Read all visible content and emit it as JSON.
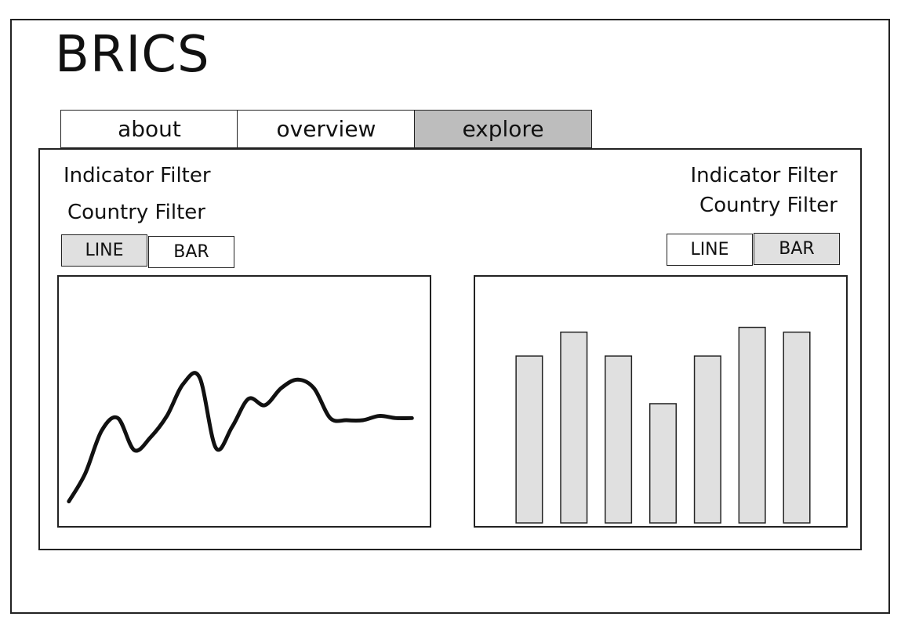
{
  "app": {
    "title": "BRICS"
  },
  "tabs": [
    {
      "label": "about",
      "active": false
    },
    {
      "label": "overview",
      "active": false
    },
    {
      "label": "explore",
      "active": true
    }
  ],
  "left_panel": {
    "indicator_filter": "Indicator Filter",
    "country_filter": "Country Filter",
    "buttons": {
      "line": {
        "label": "LINE",
        "active": true
      },
      "bar": {
        "label": "BAR",
        "active": false
      }
    }
  },
  "right_panel": {
    "indicator_filter": "Indicator Filter",
    "country_filter": "Country Filter",
    "buttons": {
      "line": {
        "label": "LINE",
        "active": false
      },
      "bar": {
        "label": "BAR",
        "active": true
      }
    }
  },
  "colors": {
    "active_tab": "#bdbdbd",
    "active_button": "#e0e0e0",
    "bar_fill": "#e0e0e0",
    "stroke": "#111111"
  },
  "chart_data": [
    {
      "type": "line",
      "x": [
        0,
        1,
        2,
        3,
        4,
        5,
        6,
        7,
        8,
        9,
        10,
        11,
        12,
        13,
        14,
        15,
        16,
        17,
        18,
        19,
        20,
        21
      ],
      "values": [
        5,
        18,
        38,
        44,
        29,
        35,
        45,
        60,
        63,
        30,
        40,
        53,
        50,
        58,
        62,
        58,
        44,
        43,
        43,
        45,
        44,
        44
      ],
      "ylim": [
        0,
        100
      ]
    },
    {
      "type": "bar",
      "values": [
        70,
        80,
        70,
        50,
        70,
        82,
        80
      ],
      "ylim": [
        0,
        100
      ]
    }
  ]
}
